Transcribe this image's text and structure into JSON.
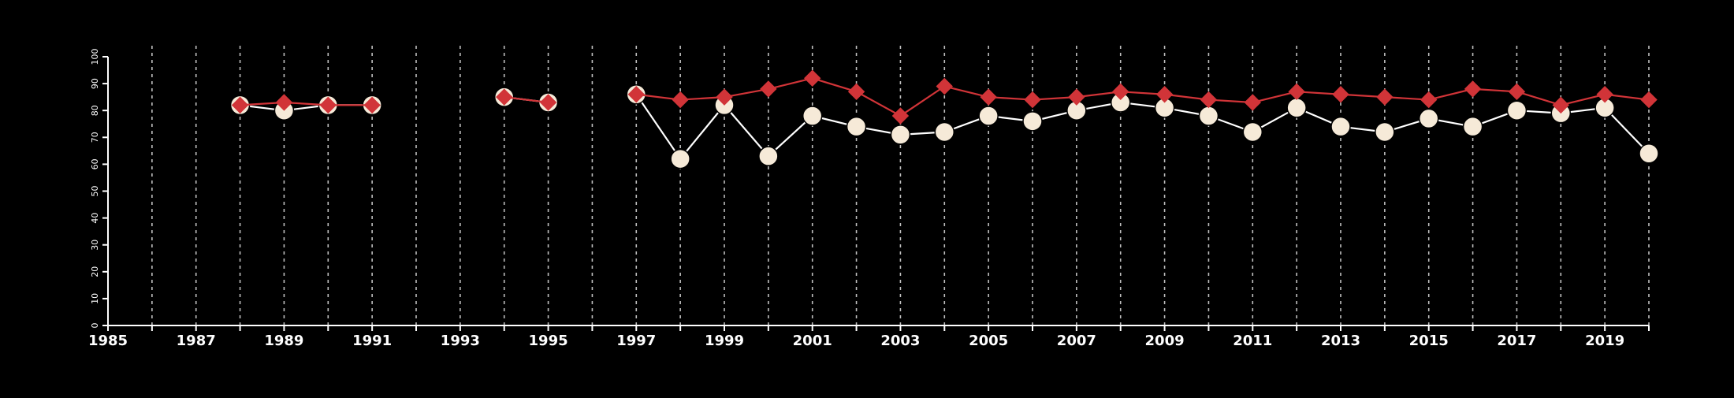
{
  "chart_data": {
    "type": "line",
    "title": "",
    "xlabel": "",
    "ylabel": "",
    "xlim": [
      1985,
      2020
    ],
    "ylim": [
      0,
      100
    ],
    "x_ticks": [
      1985,
      1987,
      1989,
      1991,
      1993,
      1995,
      1997,
      1999,
      2001,
      2003,
      2005,
      2007,
      2009,
      2011,
      2013,
      2015,
      2017,
      2019
    ],
    "x_tick_labels": [
      "1985",
      "1987",
      "1989",
      "1991",
      "1993",
      "1995",
      "1997",
      "1999",
      "2001",
      "2003",
      "2005",
      "2007",
      "2009",
      "2011",
      "2013",
      "2015",
      "2017",
      "2019"
    ],
    "y_ticks": [
      0,
      10,
      20,
      30,
      40,
      50,
      60,
      70,
      80,
      90,
      100
    ],
    "y_tick_labels": [
      "0",
      "10",
      "20",
      "30",
      "40",
      "50",
      "60",
      "70",
      "80",
      "90",
      "100"
    ],
    "gridlines": "vertical-dashed",
    "legend": "none",
    "x": [
      1985,
      1986,
      1987,
      1988,
      1989,
      1990,
      1991,
      1992,
      1993,
      1994,
      1995,
      1996,
      1997,
      1998,
      1999,
      2000,
      2001,
      2002,
      2003,
      2004,
      2005,
      2006,
      2007,
      2008,
      2009,
      2010,
      2011,
      2012,
      2013,
      2014,
      2015,
      2016,
      2017,
      2018,
      2019,
      2020
    ],
    "series": [
      {
        "marker": "circle",
        "color": "#f6ead8",
        "line_color": "#ffffff",
        "values": [
          null,
          null,
          null,
          82,
          80,
          82,
          82,
          null,
          null,
          85,
          83,
          null,
          86,
          62,
          82,
          63,
          78,
          74,
          71,
          72,
          78,
          76,
          80,
          83,
          81,
          78,
          72,
          81,
          74,
          72,
          77,
          74,
          80,
          79,
          81,
          64
        ]
      },
      {
        "marker": "diamond",
        "color": "#d13438",
        "line_color": "#d13438",
        "values": [
          null,
          null,
          null,
          82,
          83,
          82,
          82,
          null,
          null,
          85,
          83,
          null,
          86,
          84,
          85,
          88,
          92,
          87,
          78,
          89,
          85,
          84,
          85,
          87,
          86,
          84,
          83,
          87,
          86,
          85,
          84,
          88,
          87,
          82,
          86,
          84
        ]
      }
    ]
  }
}
